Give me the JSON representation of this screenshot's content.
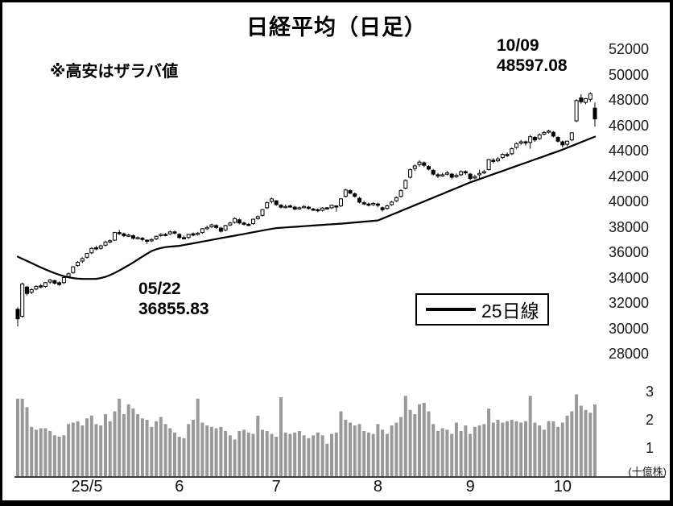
{
  "header": {
    "title": "日経平均（日足）",
    "note": "※高安はザラバ値"
  },
  "annotations": {
    "high": {
      "date": "10/09",
      "value": "48597.08"
    },
    "low": {
      "date": "05/22",
      "value": "36855.83"
    }
  },
  "legend": {
    "ma25_label": "25日線"
  },
  "chart_data": {
    "type": "candlestick",
    "title": "日経平均（日足）",
    "note": "※高安はザラバ値",
    "y_axis": {
      "min": 28000,
      "max": 52000,
      "ticks": [
        52000,
        50000,
        48000,
        46000,
        44000,
        42000,
        40000,
        38000,
        36000,
        34000,
        32000,
        30000,
        28000
      ]
    },
    "volume_axis": {
      "ticks": [
        3,
        2,
        1
      ],
      "unit": "(十億株)"
    },
    "x_axis": {
      "ticks": [
        {
          "label": "25/5",
          "day": 15
        },
        {
          "label": "6",
          "day": 35
        },
        {
          "label": "7",
          "day": 56
        },
        {
          "label": "8",
          "day": 78
        },
        {
          "label": "9",
          "day": 98
        },
        {
          "label": "10",
          "day": 118
        }
      ]
    },
    "legend_position": "inside-right-middle",
    "grid": false,
    "colors": {
      "up_fill": "#ffffff",
      "down_fill": "#000000",
      "stroke": "#000000",
      "ma_line": "#000000",
      "volume_bar": "#999999"
    },
    "series": {
      "candles_ohlc": [
        [
          31500,
          31650,
          30150,
          30750
        ],
        [
          30950,
          33600,
          30850,
          33500
        ],
        [
          33250,
          33350,
          32600,
          32750
        ],
        [
          32850,
          33150,
          32700,
          33050
        ],
        [
          33100,
          33400,
          33000,
          33300
        ],
        [
          33350,
          33500,
          33150,
          33250
        ],
        [
          33300,
          33650,
          33200,
          33600
        ],
        [
          33650,
          33900,
          33500,
          33800
        ],
        [
          33750,
          33850,
          33450,
          33550
        ],
        [
          33600,
          33700,
          33350,
          33450
        ],
        [
          33600,
          34100,
          33500,
          34000
        ],
        [
          34100,
          34400,
          34000,
          34300
        ],
        [
          34400,
          34900,
          34300,
          34850
        ],
        [
          34950,
          35300,
          34850,
          35200
        ],
        [
          35300,
          35600,
          35150,
          35500
        ],
        [
          35600,
          35950,
          35500,
          35900
        ],
        [
          35950,
          36400,
          35850,
          36300
        ],
        [
          36350,
          36500,
          36150,
          36280
        ],
        [
          36300,
          36600,
          36200,
          36500
        ],
        [
          36550,
          36900,
          36450,
          36800
        ],
        [
          36850,
          37000,
          36700,
          36900
        ],
        [
          36950,
          37600,
          36900,
          37550
        ],
        [
          37550,
          37750,
          37350,
          37500
        ],
        [
          37450,
          37550,
          37200,
          37300
        ],
        [
          37300,
          37450,
          37200,
          37350
        ],
        [
          37300,
          37400,
          37000,
          37100
        ],
        [
          37100,
          37250,
          37000,
          37150
        ],
        [
          37100,
          37200,
          36850,
          37000
        ],
        [
          36950,
          37000,
          36650,
          36856
        ],
        [
          36900,
          37100,
          36800,
          37000
        ],
        [
          37050,
          37300,
          36950,
          37250
        ],
        [
          37300,
          37500,
          37200,
          37400
        ],
        [
          37400,
          37500,
          37250,
          37380
        ],
        [
          37450,
          37700,
          37350,
          37600
        ],
        [
          37600,
          37700,
          37400,
          37550
        ],
        [
          37400,
          37500,
          37050,
          37150
        ],
        [
          37150,
          37300,
          37000,
          37100
        ],
        [
          37150,
          37450,
          37050,
          37400
        ],
        [
          37450,
          37550,
          37250,
          37350
        ],
        [
          37400,
          37600,
          37300,
          37500
        ],
        [
          37550,
          37900,
          37450,
          37850
        ],
        [
          37850,
          38100,
          37750,
          37950
        ],
        [
          38000,
          38250,
          37900,
          38150
        ],
        [
          38100,
          38200,
          37850,
          37950
        ],
        [
          37900,
          38000,
          37550,
          37650
        ],
        [
          37750,
          38150,
          37650,
          38100
        ],
        [
          38150,
          38400,
          38050,
          38300
        ],
        [
          38350,
          38750,
          38250,
          38650
        ],
        [
          38550,
          38650,
          38200,
          38300
        ],
        [
          38300,
          38400,
          38100,
          38200
        ],
        [
          38200,
          38300,
          38050,
          38150
        ],
        [
          38250,
          38650,
          38150,
          38600
        ],
        [
          38650,
          38900,
          38550,
          38800
        ],
        [
          38900,
          39400,
          38800,
          39350
        ],
        [
          39500,
          40000,
          39400,
          39900
        ],
        [
          40000,
          40300,
          39850,
          40200
        ],
        [
          40050,
          40100,
          39650,
          39750
        ],
        [
          39700,
          39800,
          39450,
          39550
        ],
        [
          39550,
          39750,
          39450,
          39600
        ],
        [
          39650,
          39750,
          39500,
          39600
        ],
        [
          39550,
          39650,
          39300,
          39400
        ],
        [
          39450,
          39600,
          39350,
          39500
        ],
        [
          39550,
          39700,
          39450,
          39600
        ],
        [
          39550,
          39650,
          39350,
          39450
        ],
        [
          39400,
          39500,
          39250,
          39370
        ],
        [
          39350,
          39450,
          39150,
          39260
        ],
        [
          39300,
          39550,
          39200,
          39480
        ],
        [
          39500,
          39550,
          39350,
          39460
        ],
        [
          39500,
          39750,
          39400,
          39700
        ],
        [
          39650,
          39700,
          39200,
          39620
        ],
        [
          39650,
          40250,
          39550,
          40200
        ],
        [
          40400,
          41000,
          40300,
          40900
        ],
        [
          40850,
          40950,
          40550,
          40650
        ],
        [
          40600,
          40700,
          40300,
          40400
        ],
        [
          40250,
          40350,
          39850,
          39950
        ],
        [
          39900,
          40050,
          39700,
          39800
        ],
        [
          39800,
          39900,
          39600,
          39750
        ],
        [
          39750,
          39950,
          39650,
          39850
        ],
        [
          39800,
          39900,
          39550,
          39700
        ],
        [
          39500,
          39600,
          39200,
          39350
        ],
        [
          39450,
          39750,
          39350,
          39650
        ],
        [
          39750,
          40050,
          39650,
          39950
        ],
        [
          40050,
          40400,
          39950,
          40300
        ],
        [
          40400,
          40950,
          40300,
          40850
        ],
        [
          41050,
          41750,
          40950,
          41650
        ],
        [
          41900,
          42600,
          41800,
          42500
        ],
        [
          42600,
          42900,
          42400,
          42800
        ],
        [
          42900,
          43250,
          42750,
          43100
        ],
        [
          43050,
          43150,
          42700,
          42850
        ],
        [
          42750,
          42850,
          42450,
          42550
        ],
        [
          42450,
          42550,
          42050,
          42150
        ],
        [
          42100,
          42250,
          41850,
          42000
        ],
        [
          42050,
          42250,
          41950,
          42100
        ],
        [
          42150,
          42400,
          42050,
          42250
        ],
        [
          42150,
          42250,
          41750,
          41900
        ],
        [
          41950,
          42200,
          41850,
          42050
        ],
        [
          42100,
          42450,
          42000,
          42350
        ],
        [
          42350,
          42450,
          42100,
          42250
        ],
        [
          42150,
          42250,
          41650,
          41800
        ],
        [
          41850,
          42100,
          41750,
          41950
        ],
        [
          42100,
          42500,
          41800,
          42200
        ],
        [
          42250,
          42500,
          42150,
          42350
        ],
        [
          42500,
          43350,
          42450,
          43300
        ],
        [
          43250,
          43400,
          43000,
          43150
        ],
        [
          43200,
          43500,
          43100,
          43350
        ],
        [
          43450,
          43800,
          43350,
          43700
        ],
        [
          43700,
          43850,
          43500,
          43650
        ],
        [
          43750,
          44250,
          43650,
          44150
        ],
        [
          44250,
          44650,
          44150,
          44550
        ],
        [
          44600,
          44850,
          44450,
          44700
        ],
        [
          44700,
          44800,
          44400,
          44600
        ],
        [
          44650,
          45250,
          44150,
          45100
        ],
        [
          45050,
          45150,
          44700,
          44850
        ],
        [
          44950,
          45350,
          44850,
          45250
        ],
        [
          45300,
          45550,
          45200,
          45430
        ],
        [
          45500,
          45650,
          45350,
          45550
        ],
        [
          45450,
          45550,
          45050,
          45150
        ],
        [
          45050,
          45150,
          44650,
          44750
        ],
        [
          44700,
          44800,
          44250,
          44450
        ],
        [
          44500,
          44800,
          44350,
          44750
        ],
        [
          44850,
          45450,
          44750,
          45400
        ],
        [
          46350,
          48050,
          46250,
          47950
        ],
        [
          48150,
          48450,
          47700,
          47850
        ],
        [
          47800,
          48150,
          47650,
          48100
        ],
        [
          48050,
          48597,
          47850,
          48480
        ],
        [
          47350,
          47800,
          45900,
          46500
        ]
      ],
      "ma25": [
        35650,
        35480,
        35310,
        35140,
        34970,
        34800,
        34640,
        34490,
        34350,
        34220,
        34110,
        34020,
        33960,
        33920,
        33900,
        33890,
        33890,
        33900,
        33960,
        34060,
        34200,
        34370,
        34560,
        34760,
        34970,
        35190,
        35420,
        35650,
        35880,
        36090,
        36230,
        36330,
        36400,
        36440,
        36470,
        36500,
        36567,
        36634,
        36701,
        36768,
        36835,
        36902,
        36969,
        37036,
        37103,
        37170,
        37237,
        37304,
        37371,
        37438,
        37505,
        37572,
        37639,
        37706,
        37770,
        37835,
        37900,
        37925,
        37950,
        37975,
        38000,
        38025,
        38050,
        38075,
        38100,
        38125,
        38150,
        38175,
        38200,
        38225,
        38250,
        38281,
        38312,
        38344,
        38375,
        38406,
        38437,
        38469,
        38500,
        38650,
        38800,
        38950,
        39100,
        39250,
        39400,
        39550,
        39700,
        39850,
        40000,
        40150,
        40300,
        40450,
        40600,
        40750,
        40900,
        41050,
        41200,
        41350,
        41500,
        41629,
        41758,
        41887,
        42016,
        42145,
        42274,
        42403,
        42532,
        42661,
        42790,
        42919,
        43048,
        43177,
        43306,
        43435,
        43564,
        43693,
        43822,
        43951,
        44080,
        44226,
        44372,
        44518,
        44664,
        44810,
        44956,
        45102
      ],
      "volume": [
        2.75,
        2.75,
        2.45,
        1.75,
        1.65,
        1.7,
        1.7,
        1.6,
        1.45,
        1.4,
        1.45,
        1.85,
        1.9,
        1.95,
        1.8,
        2.05,
        2.15,
        1.85,
        1.8,
        2.2,
        1.95,
        2.3,
        2.75,
        2.2,
        2.55,
        2.4,
        2.2,
        2.05,
        2.0,
        1.75,
        1.95,
        2.1,
        1.85,
        1.7,
        1.55,
        1.4,
        1.35,
        1.85,
        2.0,
        2.75,
        1.9,
        1.8,
        1.75,
        1.7,
        1.75,
        1.6,
        1.45,
        1.3,
        1.6,
        1.65,
        1.55,
        1.5,
        2.15,
        1.65,
        1.6,
        1.5,
        1.4,
        2.8,
        1.55,
        1.5,
        1.55,
        1.6,
        1.45,
        1.35,
        1.45,
        1.55,
        1.45,
        1.15,
        1.5,
        1.55,
        2.3,
        2.0,
        1.9,
        1.8,
        1.85,
        1.6,
        1.55,
        1.5,
        1.85,
        1.65,
        1.5,
        1.8,
        1.9,
        2.1,
        2.85,
        2.35,
        2.2,
        2.55,
        2.6,
        2.3,
        1.85,
        1.6,
        1.7,
        1.65,
        1.5,
        1.9,
        1.6,
        1.8,
        1.5,
        1.75,
        1.8,
        1.85,
        2.4,
        1.9,
        2.0,
        1.9,
        1.95,
        2.0,
        1.95,
        1.9,
        1.95,
        2.85,
        1.9,
        1.8,
        1.65,
        1.95,
        1.95,
        1.75,
        1.9,
        2.15,
        2.3,
        2.9,
        2.5,
        2.35,
        2.25,
        2.55
      ]
    }
  }
}
